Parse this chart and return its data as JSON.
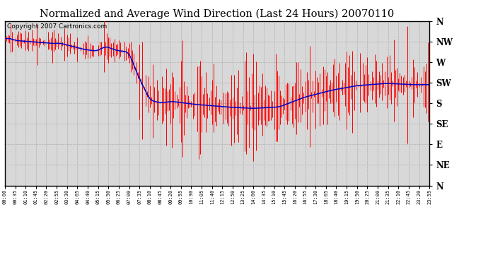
{
  "title": "Normalized and Average Wind Direction (Last 24 Hours) 20070110",
  "copyright_text": "Copyright 2007 Cartronics.com",
  "background_color": "#ffffff",
  "plot_bg_color": "#d8d8d8",
  "y_labels": [
    "N",
    "NW",
    "W",
    "SW",
    "S",
    "SE",
    "E",
    "NE",
    "N"
  ],
  "y_ticks": [
    360,
    315,
    270,
    225,
    180,
    135,
    90,
    45,
    0
  ],
  "ylim": [
    0,
    360
  ],
  "grid_color": "#aaaaaa",
  "red_color": "#ff0000",
  "blue_color": "#0000cc",
  "title_fontsize": 10.5,
  "copyright_fontsize": 6.5,
  "x_tick_labels": [
    "00:00",
    "00:35",
    "01:10",
    "01:45",
    "02:20",
    "02:55",
    "03:30",
    "04:05",
    "04:40",
    "05:15",
    "05:50",
    "06:25",
    "07:00",
    "07:35",
    "08:10",
    "08:45",
    "09:20",
    "09:55",
    "10:30",
    "11:05",
    "11:40",
    "12:15",
    "12:50",
    "13:25",
    "14:00",
    "14:35",
    "15:10",
    "15:45",
    "16:20",
    "16:55",
    "17:30",
    "18:05",
    "18:40",
    "19:15",
    "19:50",
    "20:25",
    "21:00",
    "21:35",
    "22:10",
    "22:45",
    "23:20",
    "23:55"
  ]
}
